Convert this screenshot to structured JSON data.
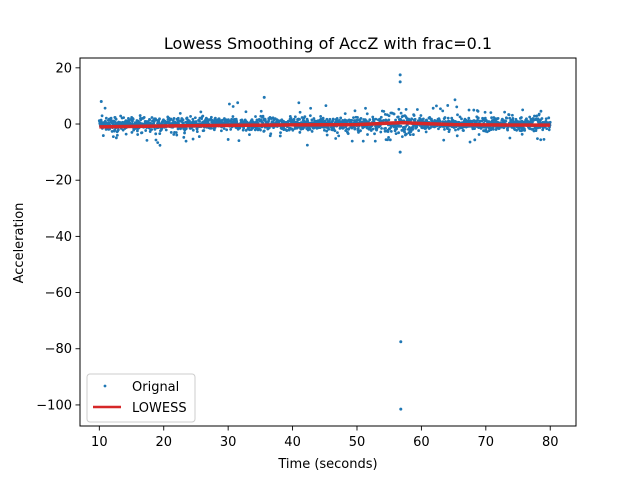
{
  "chart_data": {
    "type": "scatter",
    "title": "Lowess Smoothing of AccZ with frac=0.1",
    "xlabel": "Time (seconds)",
    "ylabel": "Acceleration",
    "xlim": [
      7,
      84
    ],
    "ylim": [
      -107.5,
      23.5
    ],
    "x_ticks": [
      10,
      20,
      30,
      40,
      50,
      60,
      70,
      80
    ],
    "y_ticks": [
      20,
      0,
      -20,
      -40,
      -60,
      -80,
      -100
    ],
    "grid": false,
    "legend_position": "lower-left",
    "series": [
      {
        "name": "Orignal",
        "kind": "scatter",
        "color": "#1f77b4",
        "points_summary": {
          "x_range": [
            10,
            80
          ],
          "typical_band": [
            -3,
            3
          ],
          "notable_points": [
            {
              "x": 10.3,
              "y": 8
            },
            {
              "x": 35.6,
              "y": 9.5
            },
            {
              "x": 56.7,
              "y": 17.5
            },
            {
              "x": 56.7,
              "y": 15
            },
            {
              "x": 56.7,
              "y": -10
            },
            {
              "x": 56.8,
              "y": -77.5
            },
            {
              "x": 56.8,
              "y": -101.5
            }
          ]
        }
      },
      {
        "name": "LOWESS",
        "kind": "line",
        "color": "#d62728",
        "x": [
          10,
          20,
          30,
          40,
          50,
          55,
          57,
          60,
          65,
          70,
          80
        ],
        "y": [
          -1.0,
          -0.7,
          -0.5,
          -0.3,
          -0.2,
          0.3,
          0.5,
          0.2,
          -0.2,
          -0.3,
          -0.4
        ]
      }
    ]
  }
}
